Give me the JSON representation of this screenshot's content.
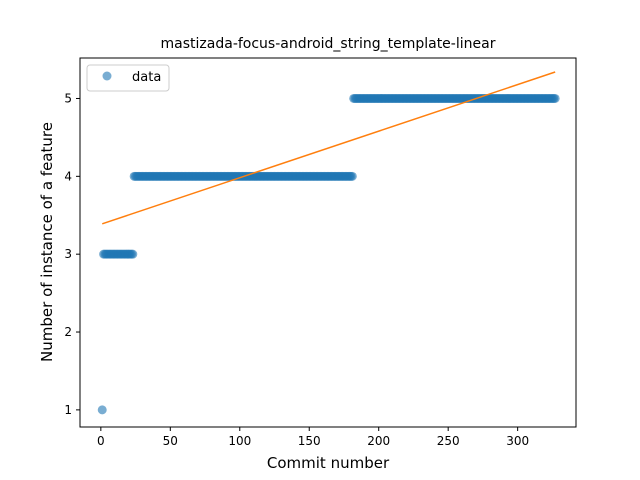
{
  "chart_data": {
    "type": "scatter",
    "title": "mastizada-focus-android_string_template-linear",
    "xlabel": "Commit number",
    "ylabel": "Number of instance of a feature",
    "xlim": [
      -15,
      342
    ],
    "ylim": [
      0.78,
      5.52
    ],
    "xticks": [
      0,
      50,
      100,
      150,
      200,
      250,
      300
    ],
    "yticks": [
      1,
      2,
      3,
      4,
      5
    ],
    "grid": false,
    "legend": {
      "placement": "top-left",
      "entries": [
        "data"
      ]
    },
    "colors": {
      "data": "#1f77b4",
      "fit": "#ff7f0e"
    },
    "series": [
      {
        "name": "data",
        "kind": "scatter",
        "segments": [
          {
            "x_start": 1,
            "x_end": 1,
            "y": 1
          },
          {
            "x_start": 2,
            "x_end": 23,
            "y": 3
          },
          {
            "x_start": 24,
            "x_end": 181,
            "y": 4
          },
          {
            "x_start": 182,
            "x_end": 327,
            "y": 5
          }
        ]
      },
      {
        "kind": "line",
        "x": [
          1,
          327
        ],
        "y": [
          3.39,
          5.34
        ]
      }
    ]
  }
}
